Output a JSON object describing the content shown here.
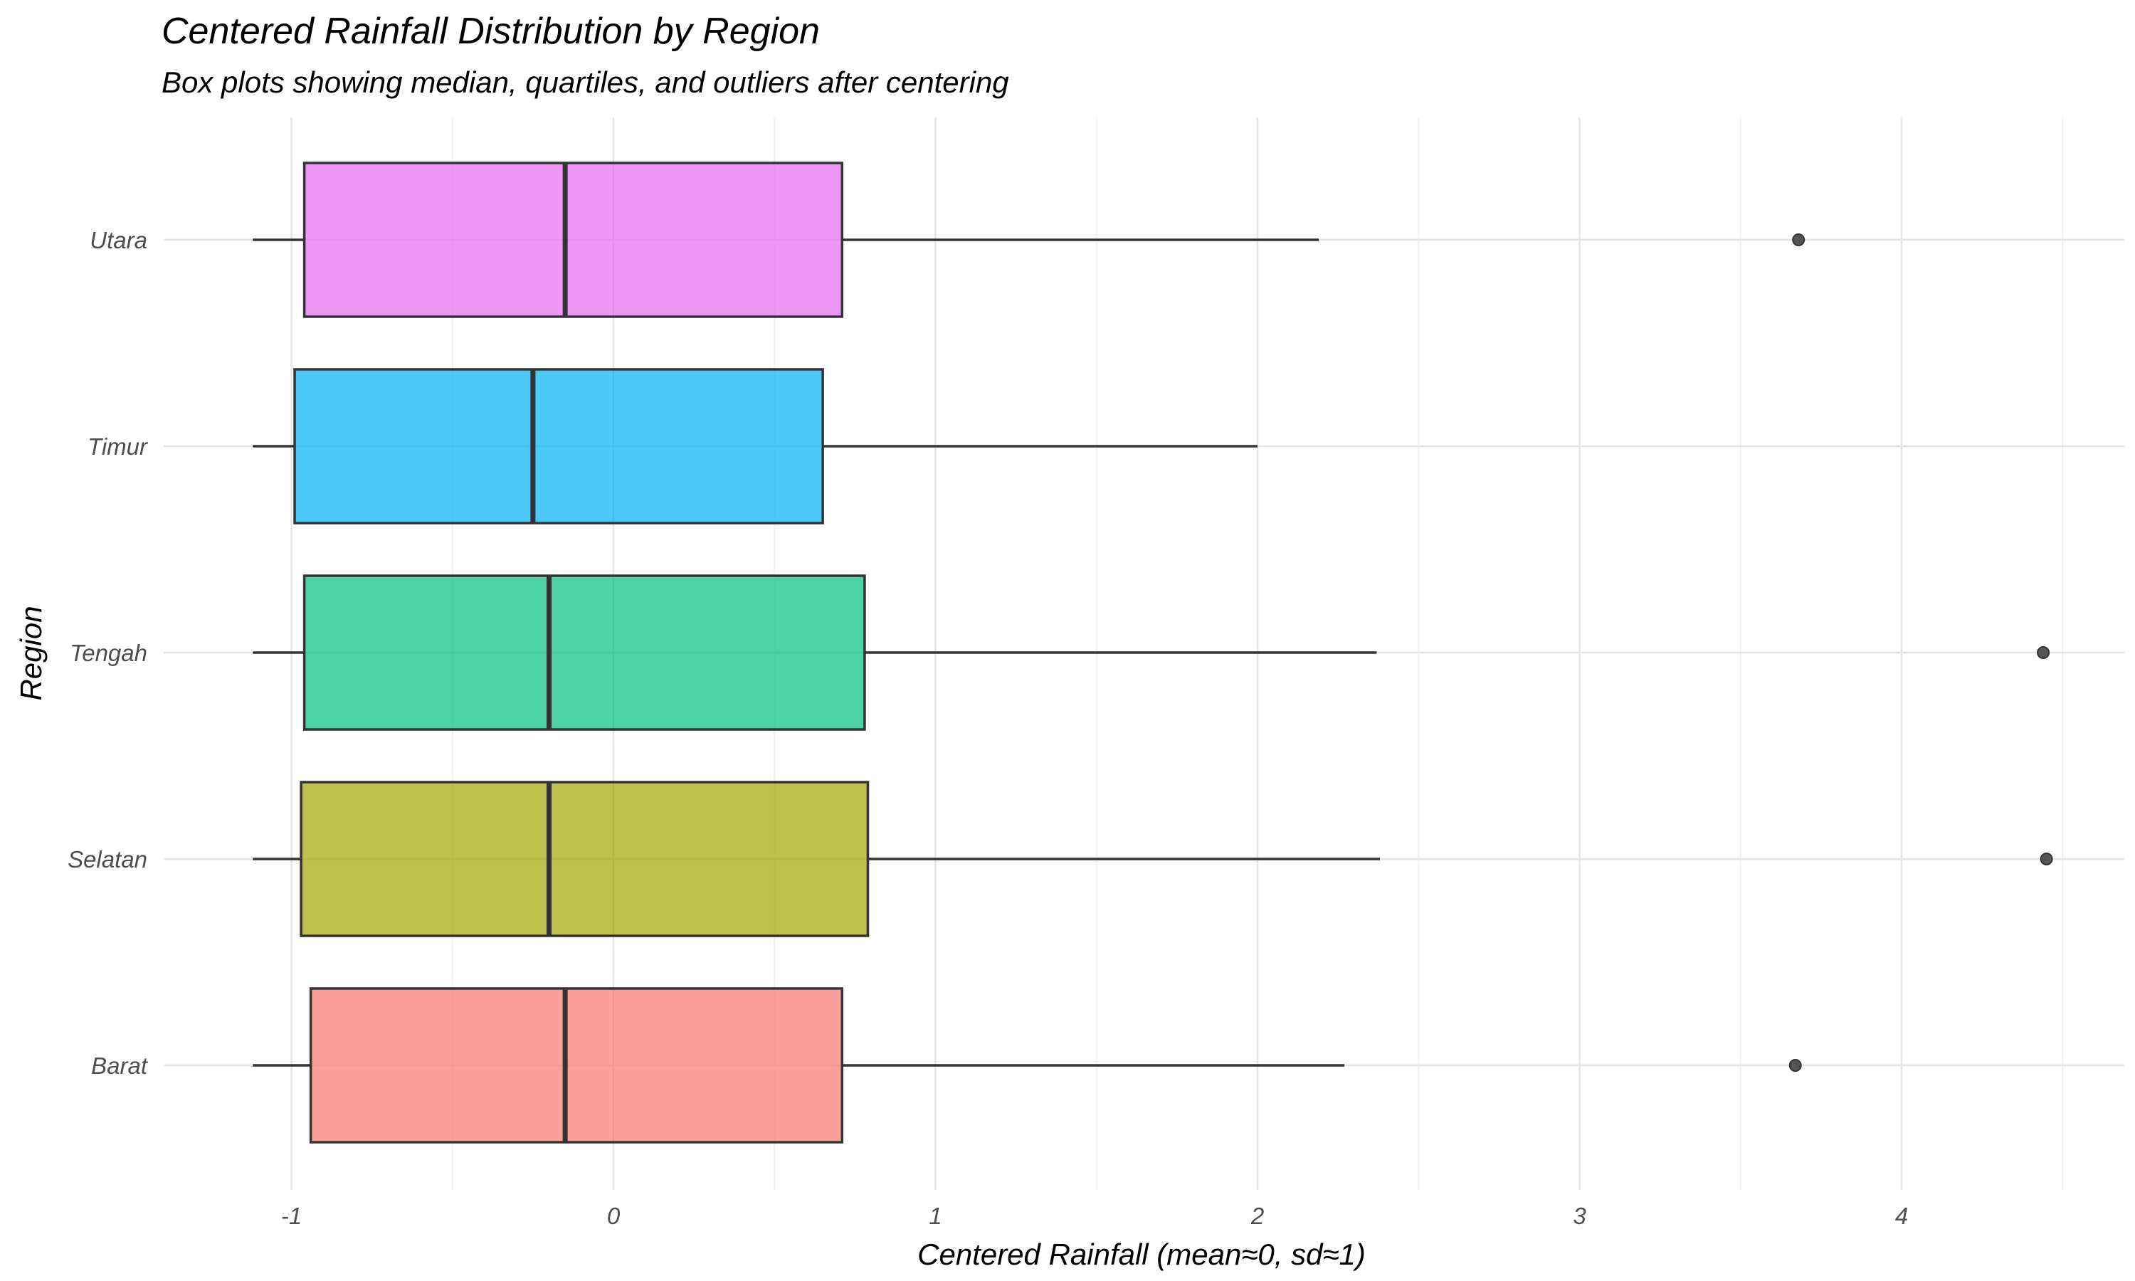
{
  "chart_data": {
    "type": "boxplot",
    "orientation": "horizontal",
    "title": "Centered Rainfall Distribution by Region",
    "subtitle": "Box plots showing median, quartiles, and outliers after centering",
    "xlabel": "Centered Rainfall (mean≈0, sd≈1)",
    "ylabel": "Region",
    "xlim": [
      -1.4,
      4.6
    ],
    "x_ticks": [
      -1,
      0,
      1,
      2,
      3,
      4
    ],
    "x_tick_labels": [
      "-1",
      "0",
      "1",
      "2",
      "3",
      "4"
    ],
    "grid": true,
    "legend": "none",
    "categories": [
      "Barat",
      "Selatan",
      "Tengah",
      "Timur",
      "Utara"
    ],
    "series": [
      {
        "category": "Barat",
        "min": -1.12,
        "q1": -0.94,
        "median": -0.15,
        "q3": 0.71,
        "max": 2.27,
        "outliers": [
          3.67
        ],
        "color": "#F8766D"
      },
      {
        "category": "Selatan",
        "min": -1.12,
        "q1": -0.97,
        "median": -0.2,
        "q3": 0.79,
        "max": 2.38,
        "outliers": [
          4.45
        ],
        "color": "#A3A500"
      },
      {
        "category": "Tengah",
        "min": -1.12,
        "q1": -0.96,
        "median": -0.2,
        "q3": 0.78,
        "max": 2.37,
        "outliers": [
          4.44
        ],
        "color": "#00BF7D"
      },
      {
        "category": "Timur",
        "min": -1.12,
        "q1": -0.99,
        "median": -0.25,
        "q3": 0.65,
        "max": 2.0,
        "outliers": [],
        "color": "#00B0F6"
      },
      {
        "category": "Utara",
        "min": -1.12,
        "q1": -0.96,
        "median": -0.15,
        "q3": 0.71,
        "max": 2.19,
        "outliers": [
          3.68
        ],
        "color": "#E76BF3"
      }
    ]
  }
}
